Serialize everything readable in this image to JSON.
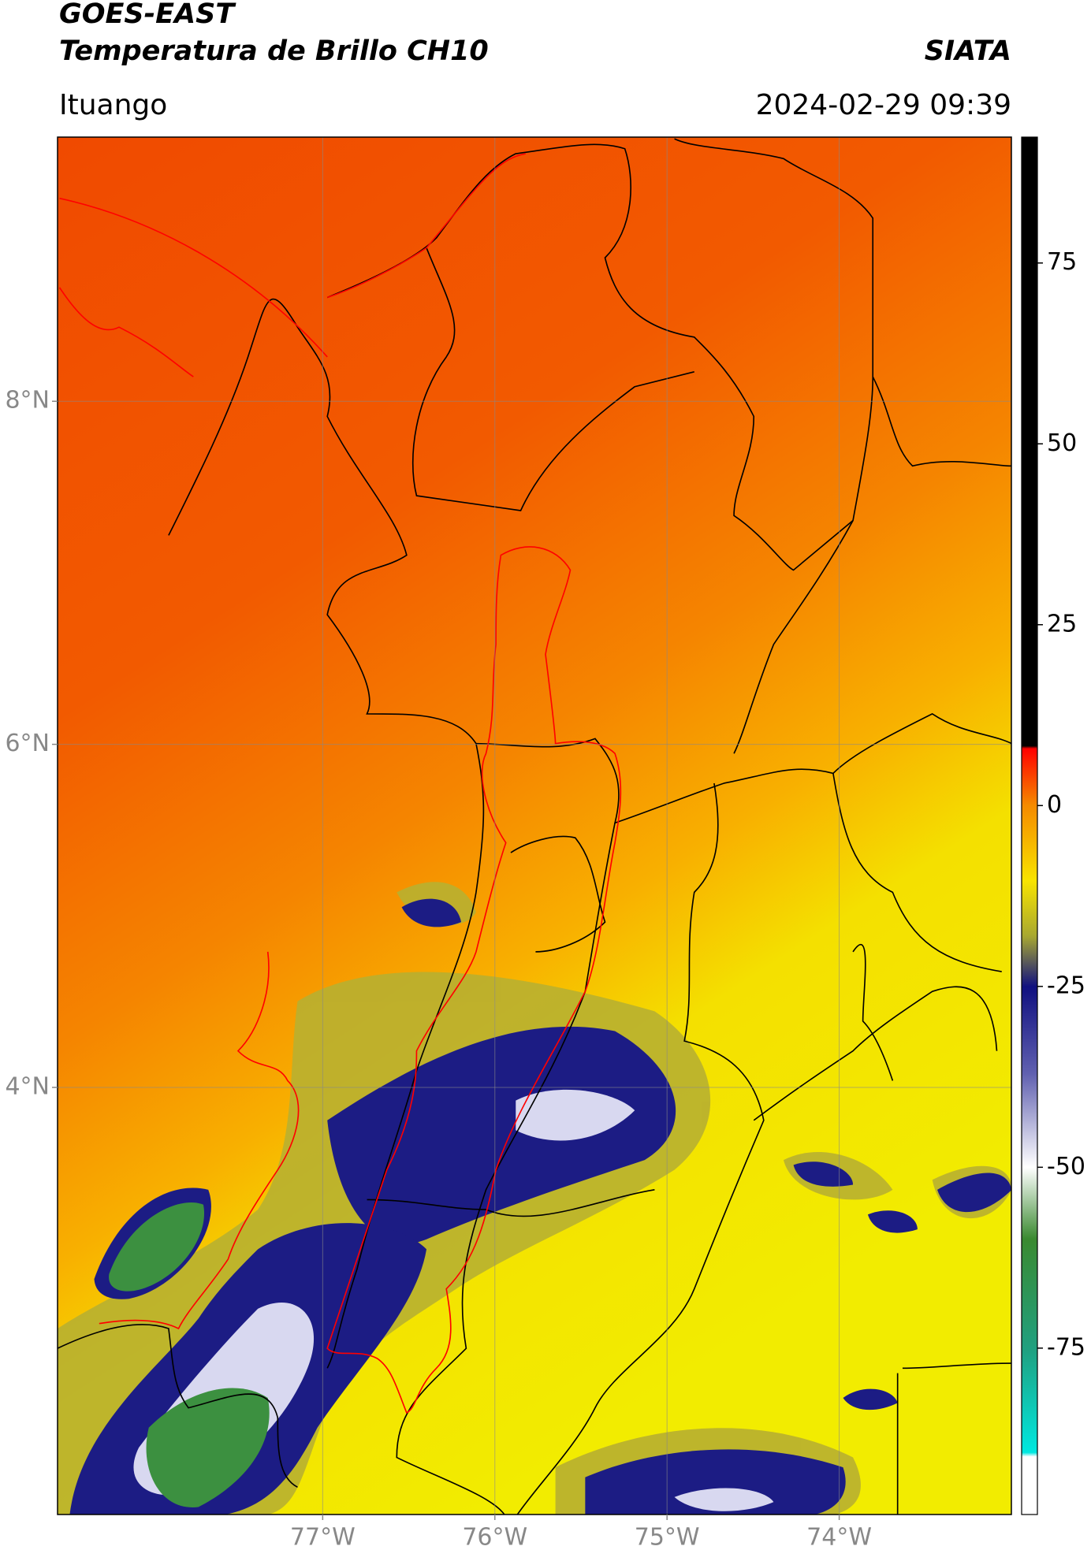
{
  "header": {
    "title": "GOES-EAST",
    "subtitle": "Temperatura de Brillo CH10",
    "source": "SIATA",
    "location": "Ituango",
    "datetime": "2024-02-29 09:39"
  },
  "map": {
    "xlim": [
      -78.54,
      -73.0
    ],
    "ylim": [
      1.51,
      9.54
    ],
    "xticks": [
      {
        "value": -77,
        "label": "77°W"
      },
      {
        "value": -76,
        "label": "76°W"
      },
      {
        "value": -75,
        "label": "75°W"
      },
      {
        "value": -74,
        "label": "74°W"
      }
    ],
    "yticks": [
      {
        "value": 8,
        "label": "8°N"
      },
      {
        "value": 6,
        "label": "6°N"
      },
      {
        "value": 4,
        "label": "4°N"
      }
    ],
    "grid": true
  },
  "colorbar": {
    "lim": [
      -98,
      92.4
    ],
    "ticks": [
      75,
      50,
      25,
      0,
      -25,
      -50,
      -75
    ]
  }
}
